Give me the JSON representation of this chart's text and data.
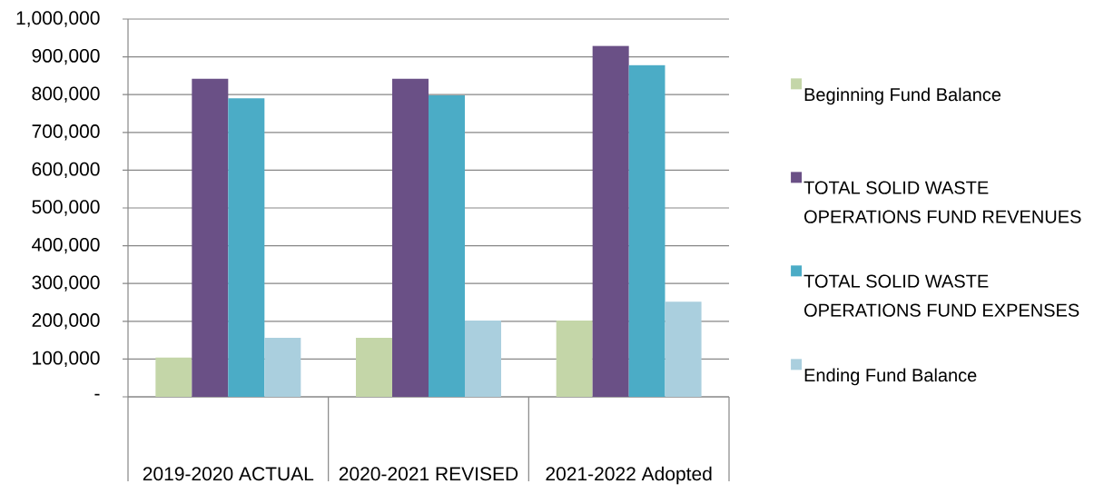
{
  "chart_data": {
    "type": "bar",
    "categories": [
      "2019-2020 ACTUAL",
      "2020-2021 REVISED",
      "2021-2022 Adopted"
    ],
    "series": [
      {
        "name": "Beginning Fund Balance",
        "color": "#c4d6a8",
        "values": [
          104000,
          156000,
          202000
        ]
      },
      {
        "name": "TOTAL SOLID WASTE OPERATIONS FUND REVENUES",
        "color": "#6a5086",
        "values": [
          842000,
          842000,
          929000
        ]
      },
      {
        "name": "TOTAL SOLID WASTE OPERATIONS FUND EXPENSES",
        "color": "#4bacc6",
        "values": [
          790000,
          798000,
          878000
        ]
      },
      {
        "name": "Ending Fund Balance",
        "color": "#aacfde",
        "values": [
          156000,
          202000,
          252000
        ]
      }
    ],
    "ylim": [
      0,
      1000000
    ],
    "yticks": [
      {
        "value": 0,
        "label": "-"
      },
      {
        "value": 100000,
        "label": "100,000"
      },
      {
        "value": 200000,
        "label": "200,000"
      },
      {
        "value": 300000,
        "label": "300,000"
      },
      {
        "value": 400000,
        "label": "400,000"
      },
      {
        "value": 500000,
        "label": "500,000"
      },
      {
        "value": 600000,
        "label": "600,000"
      },
      {
        "value": 700000,
        "label": "700,000"
      },
      {
        "value": 800000,
        "label": "800,000"
      },
      {
        "value": 900000,
        "label": "900,000"
      },
      {
        "value": 1000000,
        "label": "1,000,000"
      }
    ],
    "grid": "y",
    "legend": "right"
  }
}
